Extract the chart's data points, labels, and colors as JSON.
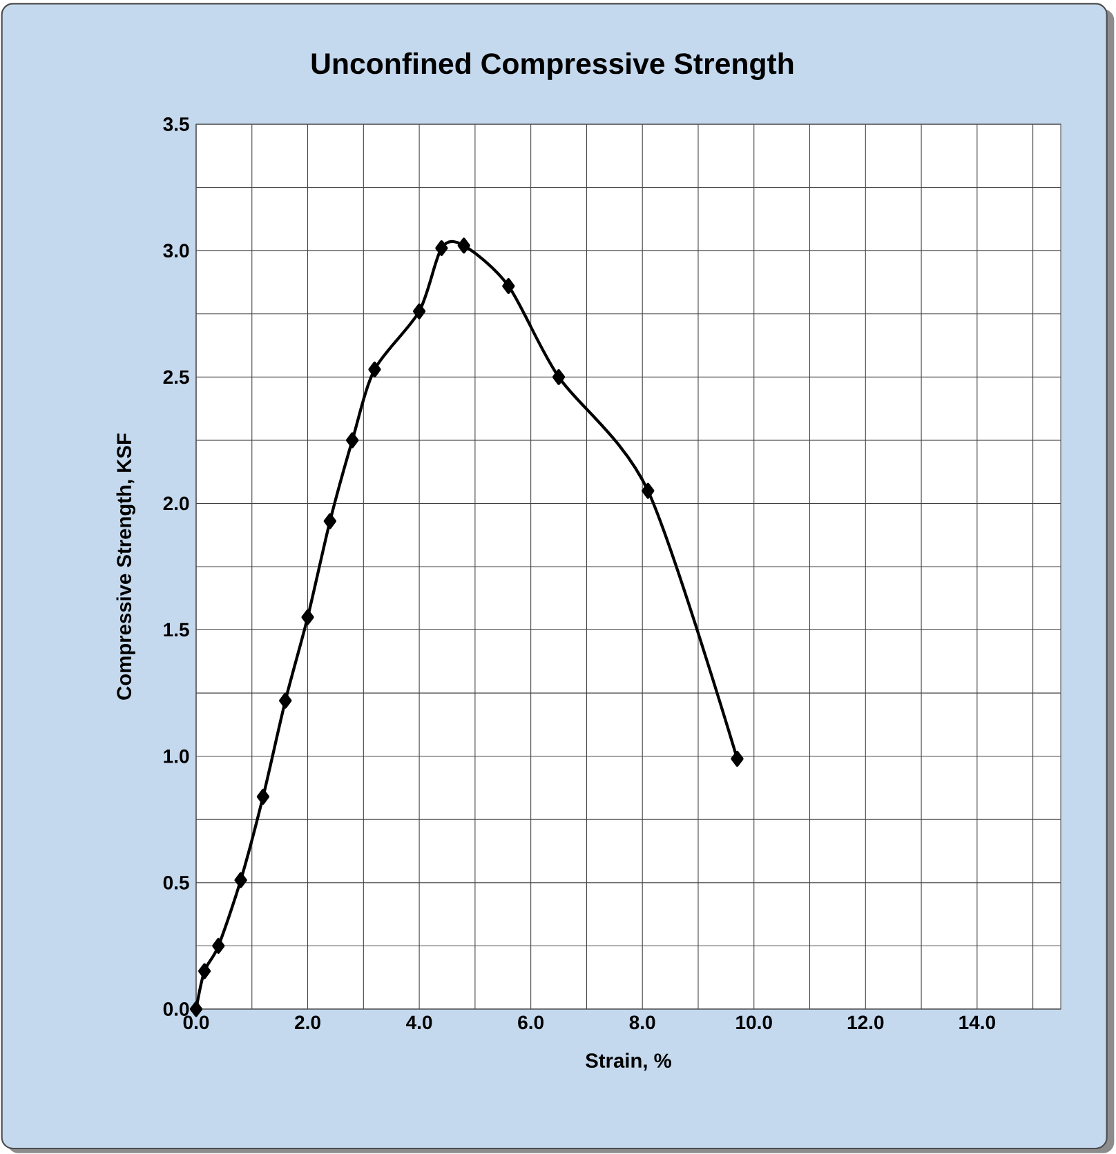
{
  "chart_data": {
    "type": "line",
    "title": "Unconfined Compressive Strength",
    "xlabel": "Strain, %",
    "ylabel": "Compressive Strength, KSF",
    "x": [
      0,
      0.15,
      0.4,
      0.8,
      1.2,
      1.6,
      2.0,
      2.4,
      2.8,
      3.2,
      4.0,
      4.4,
      4.8,
      5.6,
      6.5,
      8.1,
      9.7
    ],
    "series": [
      {
        "color": "#000000",
        "values": [
          0,
          0.15,
          0.25,
          0.51,
          0.84,
          1.22,
          1.55,
          1.93,
          2.25,
          2.53,
          2.76,
          3.01,
          3.02,
          2.86,
          2.5,
          2.05,
          0.99
        ]
      }
    ],
    "xlim": [
      0,
      15.5
    ],
    "xticks": [
      {
        "value": 0,
        "label": "0.0"
      },
      {
        "value": 1,
        "label": null
      },
      {
        "value": 2,
        "label": "2.0"
      },
      {
        "value": 3,
        "label": null
      },
      {
        "value": 4,
        "label": "4.0"
      },
      {
        "value": 5,
        "label": null
      },
      {
        "value": 6,
        "label": "6.0"
      },
      {
        "value": 7,
        "label": null
      },
      {
        "value": 8,
        "label": "8.0"
      },
      {
        "value": 9,
        "label": null
      },
      {
        "value": 10,
        "label": "10.0"
      },
      {
        "value": 11,
        "label": null
      },
      {
        "value": 12,
        "label": "12.0"
      },
      {
        "value": 13,
        "label": null
      },
      {
        "value": 14,
        "label": "14.0"
      },
      {
        "value": 15,
        "label": null
      }
    ],
    "ylim": [
      0,
      3.5
    ],
    "yticks": [
      {
        "value": 0,
        "label": "0.0"
      },
      {
        "value": 0.25,
        "label": null
      },
      {
        "value": 0.5,
        "label": "0.5"
      },
      {
        "value": 0.75,
        "label": null
      },
      {
        "value": 1,
        "label": "1.0"
      },
      {
        "value": 1.25,
        "label": null
      },
      {
        "value": 1.5,
        "label": "1.5"
      },
      {
        "value": 1.75,
        "label": null
      },
      {
        "value": 2,
        "label": "2.0"
      },
      {
        "value": 2.25,
        "label": null
      },
      {
        "value": 2.5,
        "label": "2.5"
      },
      {
        "value": 2.75,
        "label": null
      },
      {
        "value": 3,
        "label": "3.0"
      },
      {
        "value": 3.25,
        "label": null
      },
      {
        "value": 3.5,
        "label": "3.5"
      }
    ],
    "grid": true,
    "marker": "diamond",
    "line_style": "solid"
  }
}
